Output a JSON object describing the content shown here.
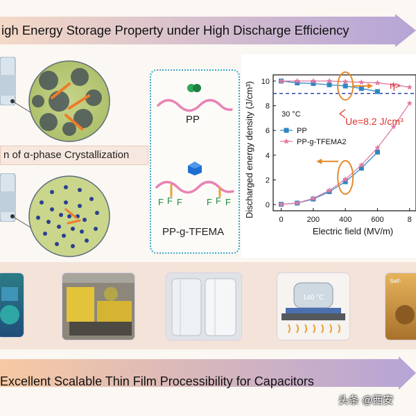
{
  "banners": {
    "top": "igh Energy Storage Property under High Discharge Efficiency",
    "bottom": "Excellent Scalable Thin Film Processibility for Capacitors"
  },
  "left_panel": {
    "crystallization_label": "n of α-phase Crystallization"
  },
  "structures": {
    "pp_label": "PP",
    "ppg_label": "PP-g-TFEMA",
    "fluorine": "F"
  },
  "chart_data": {
    "type": "line",
    "xlabel": "Electric field (MV/m)",
    "ylabel": "Discharged energy density (J/cm³)",
    "xlim": [
      -50,
      840
    ],
    "ylim": [
      -0.5,
      10.5
    ],
    "xticks": [
      "0",
      "200",
      "400",
      "600",
      "8"
    ],
    "yticks": [
      "0",
      "2",
      "4",
      "6",
      "8",
      "10"
    ],
    "temperature_label": "30 °C",
    "annotation_ue": "Ue=8.2 J/cm³",
    "annotation_eta": "η>",
    "series": [
      {
        "name": "PP",
        "color": "#2e86c1",
        "marker": "square",
        "x": [
          0,
          100,
          200,
          300,
          400,
          500,
          600
        ],
        "energy": [
          0.02,
          0.12,
          0.45,
          1.05,
          1.85,
          2.95,
          4.25
        ],
        "efficiency": [
          10.0,
          9.85,
          9.8,
          9.7,
          9.6,
          9.4,
          9.15
        ]
      },
      {
        "name": "PP-g-TFEMA2",
        "color": "#e07aa3",
        "marker": "star",
        "x": [
          0,
          100,
          200,
          300,
          400,
          500,
          600,
          700,
          800
        ],
        "energy": [
          0.02,
          0.13,
          0.5,
          1.15,
          2.05,
          3.2,
          4.6,
          6.3,
          8.2
        ],
        "efficiency": [
          10.0,
          10.0,
          10.0,
          10.0,
          9.95,
          9.9,
          9.85,
          9.7,
          9.5
        ]
      }
    ],
    "dashed_line_y": 9.0
  },
  "colors": {
    "banner_purple": "#b7a8d6",
    "banner_orange": "#f0a973",
    "pink_chain": "#e883b5",
    "ue_red": "#d9322b",
    "annotation_orange": "#e48a2c"
  },
  "watermark": "头条 @西安"
}
